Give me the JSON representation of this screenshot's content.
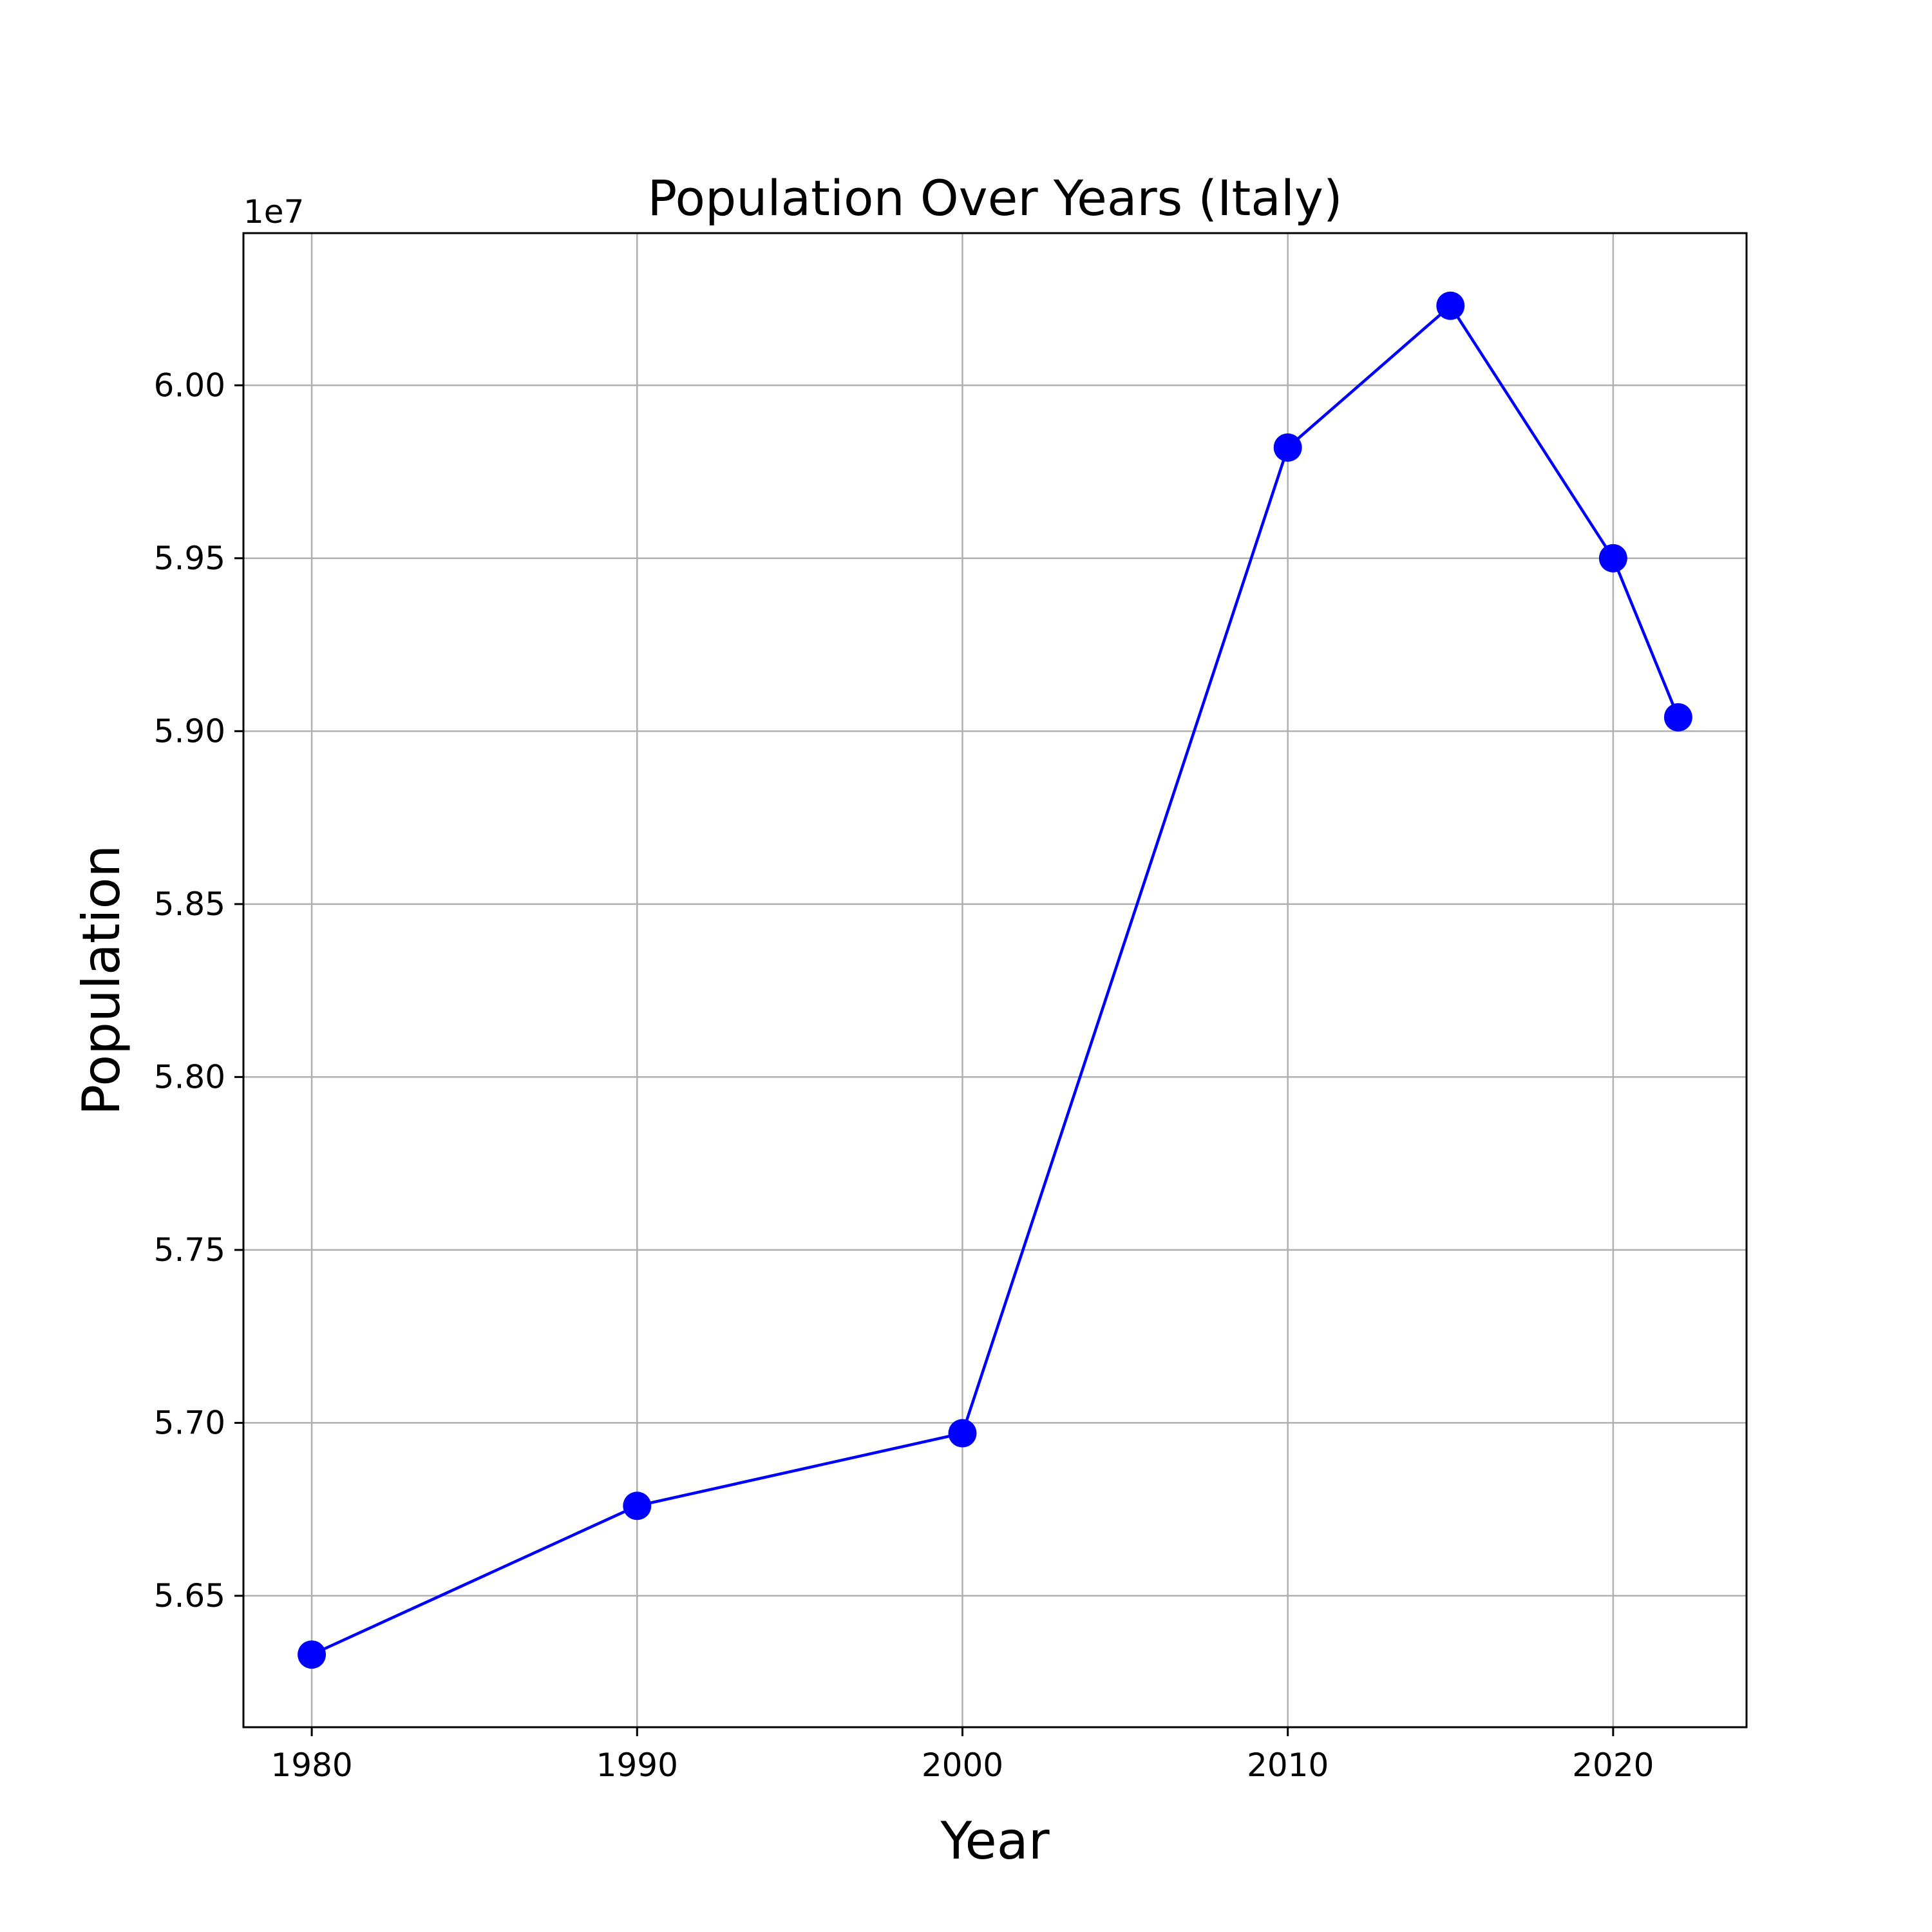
{
  "chart_data": {
    "type": "line",
    "title": "Population Over Years (Italy)",
    "xlabel": "Year",
    "ylabel": "Population",
    "y_offset_label": "1e7",
    "y_multiplier": 10000000,
    "x": [
      1980,
      1990,
      2000,
      2010,
      2015,
      2020,
      2022
    ],
    "series": [
      {
        "values": [
          56330000,
          56760000,
          56970000,
          59820000,
          60230000,
          59500000,
          59040000
        ],
        "color": "#0000ff"
      }
    ],
    "xlim": [
      1977.9,
      2024.1
    ],
    "ylim": [
      56120000,
      60440000
    ],
    "x_ticks": [
      1980,
      1990,
      2000,
      2010,
      2020
    ],
    "x_tick_labels": [
      "1980",
      "1990",
      "2000",
      "2010",
      "2020"
    ],
    "y_ticks": [
      56500000,
      57000000,
      57500000,
      58000000,
      58500000,
      59000000,
      59500000,
      60000000
    ],
    "y_tick_labels": [
      "5.65",
      "5.70",
      "5.75",
      "5.80",
      "5.85",
      "5.90",
      "5.95",
      "6.00"
    ],
    "grid": true,
    "legend": "none",
    "marker": "circle"
  }
}
